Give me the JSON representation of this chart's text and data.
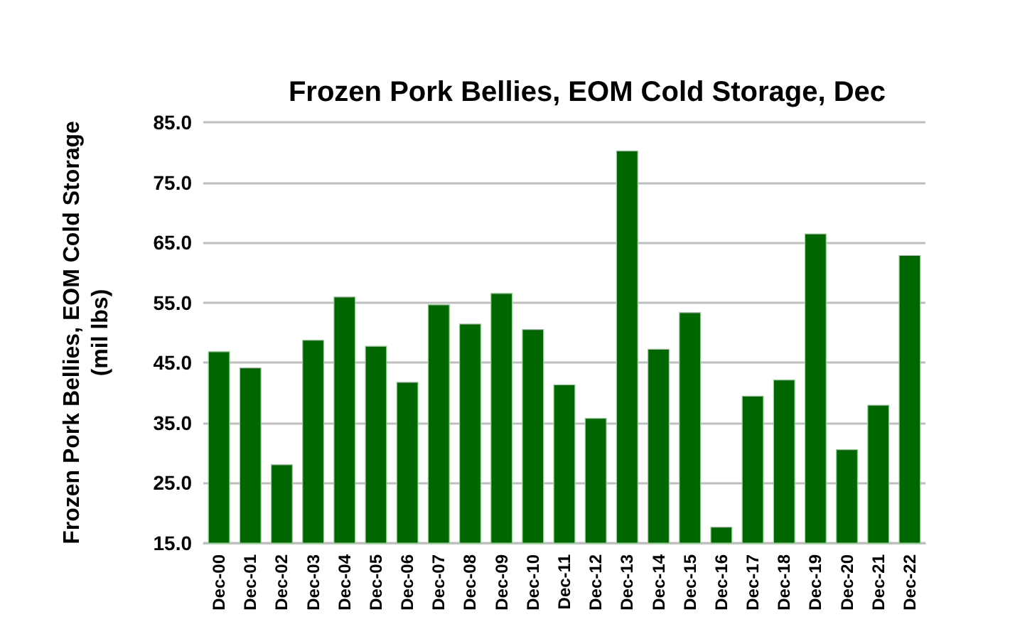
{
  "chart_data": {
    "type": "bar",
    "title": "Frozen Pork Bellies, EOM Cold Storage, Dec",
    "ylabel": "Frozen Pork Bellies, EOM Cold Storage\n(mil lbs)",
    "categories": [
      "Dec-00",
      "Dec-01",
      "Dec-02",
      "Dec-03",
      "Dec-04",
      "Dec-05",
      "Dec-06",
      "Dec-07",
      "Dec-08",
      "Dec-09",
      "Dec-10",
      "Dec-11",
      "Dec-12",
      "Dec-13",
      "Dec-14",
      "Dec-15",
      "Dec-16",
      "Dec-17",
      "Dec-18",
      "Dec-19",
      "Dec-20",
      "Dec-21",
      "Dec-22"
    ],
    "values": [
      46.9,
      44.2,
      28.1,
      48.8,
      56.0,
      47.8,
      41.8,
      54.7,
      51.5,
      56.6,
      50.6,
      41.4,
      35.8,
      80.3,
      47.3,
      53.4,
      17.7,
      39.5,
      42.2,
      66.5,
      30.6,
      38.0,
      62.9
    ],
    "color": "#006600",
    "ylim": [
      15,
      85
    ],
    "yticks": [
      {
        "value": 15,
        "label": "15.0"
      },
      {
        "value": 25,
        "label": "25.0"
      },
      {
        "value": 35,
        "label": "35.0"
      },
      {
        "value": 45,
        "label": "45.0"
      },
      {
        "value": 55,
        "label": "55.0"
      },
      {
        "value": 65,
        "label": "65.0"
      },
      {
        "value": 75,
        "label": "75.0"
      },
      {
        "value": 85,
        "label": "85.0"
      }
    ],
    "grid": "y"
  }
}
